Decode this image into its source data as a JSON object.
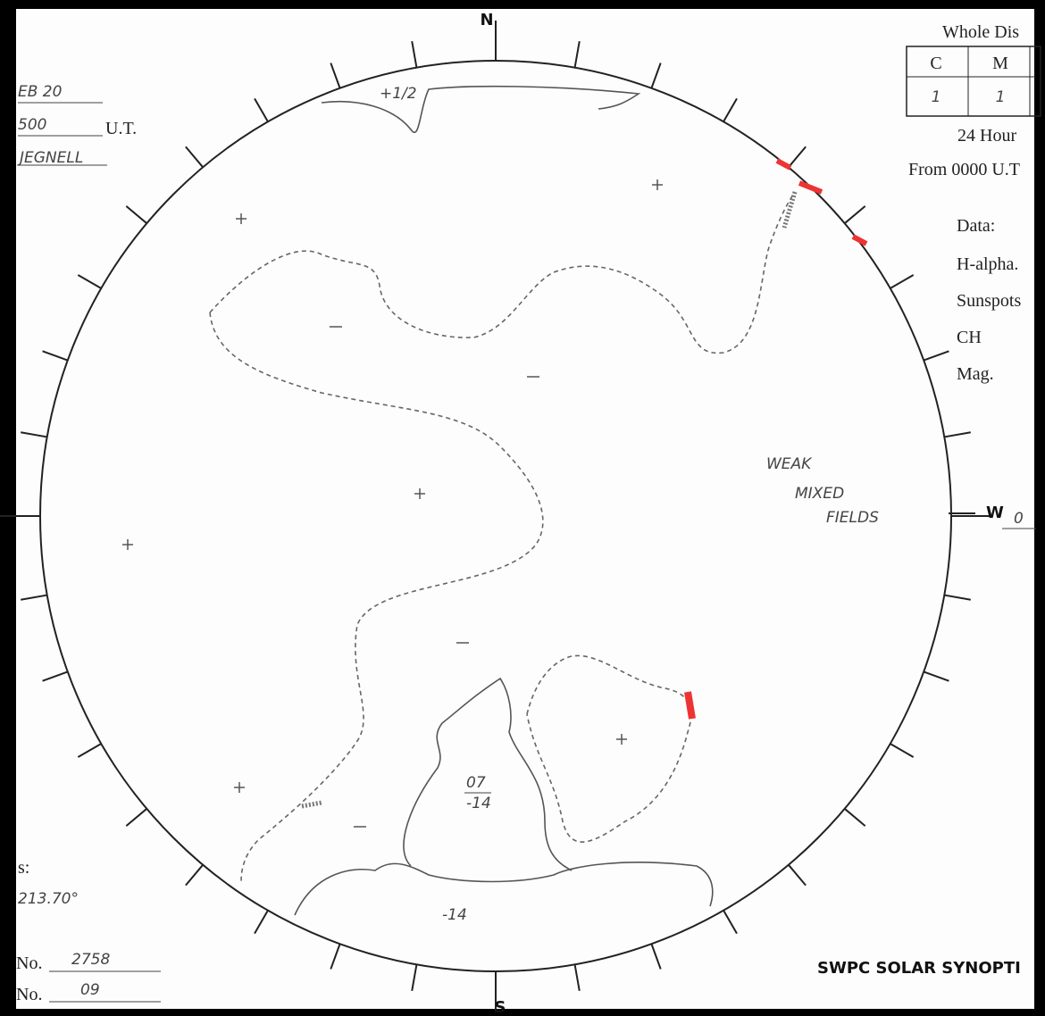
{
  "compass": {
    "north": "N",
    "south": "S",
    "west": "W",
    "west_value": "0"
  },
  "left_panel": {
    "date": "EB 20",
    "time": "500",
    "time_unit": "U.T.",
    "observer": "JEGNELL",
    "label": "s:",
    "angle": "213.70°",
    "no1_label": "No.",
    "no1": "2758",
    "no2_label": "No.",
    "no2": "09"
  },
  "right_panel": {
    "title": "Whole Dis",
    "table": {
      "headers": [
        "C",
        "M"
      ],
      "rows": [
        [
          "1",
          "1"
        ]
      ]
    },
    "period": "24 Hour",
    "from": "From 0000 U.T",
    "data_label": "Data:",
    "fields": [
      "H-alpha.",
      "Sunspots",
      "CH",
      "Mag."
    ]
  },
  "annotations": {
    "weak": [
      "WEAK",
      "MIXED",
      "FIELDS"
    ],
    "ch_north": "+1/2",
    "ch_south_top": "07",
    "ch_south_bottom": "-14",
    "ch_south_low": "-14"
  },
  "footer": "SWPC SOLAR SYNOPTI"
}
